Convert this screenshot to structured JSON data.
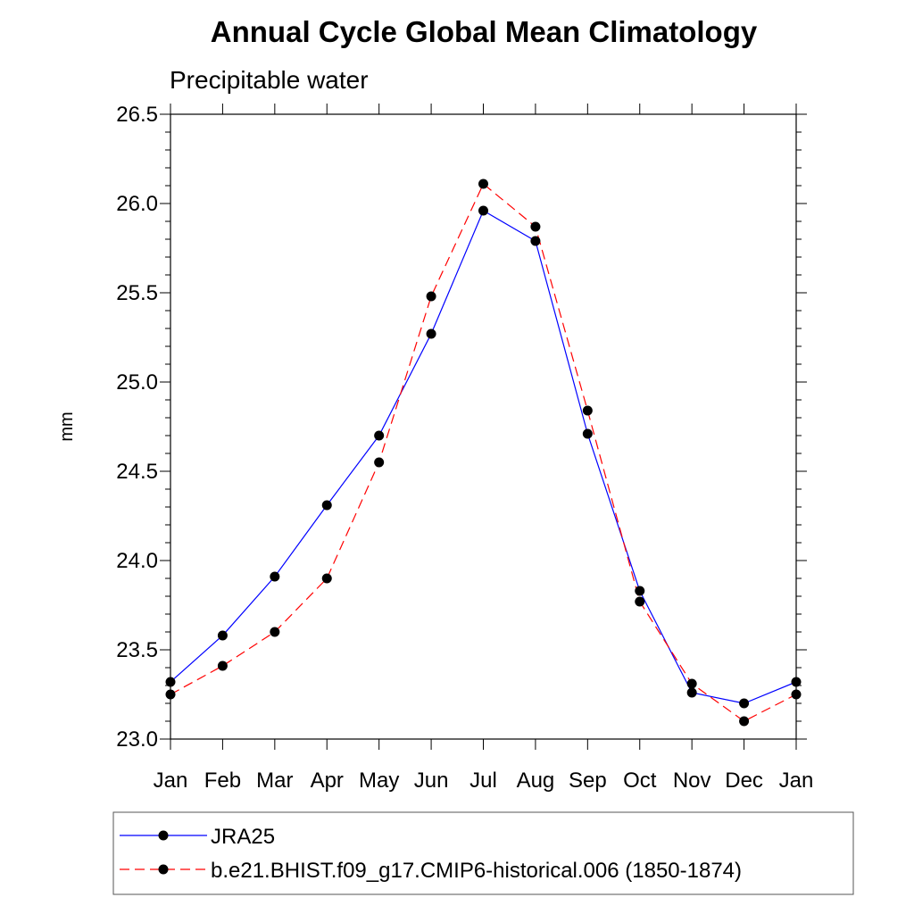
{
  "chart_data": {
    "type": "line",
    "title": "Annual Cycle Global Mean Climatology",
    "subtitle": "Precipitable water",
    "xlabel": "",
    "ylabel": "mm",
    "ylim": [
      23.0,
      26.5
    ],
    "y_ticks": [
      "23.0",
      "23.5",
      "24.0",
      "24.5",
      "25.0",
      "25.5",
      "26.0",
      "26.5"
    ],
    "categories": [
      "Jan",
      "Feb",
      "Mar",
      "Apr",
      "May",
      "Jun",
      "Jul",
      "Aug",
      "Sep",
      "Oct",
      "Nov",
      "Dec",
      "Jan"
    ],
    "grid": false,
    "legend_position": "bottom",
    "series": [
      {
        "name": "JRA25",
        "color": "#0000ff",
        "dash": "solid",
        "values": [
          23.32,
          23.58,
          23.91,
          24.31,
          24.7,
          25.27,
          25.96,
          25.79,
          24.71,
          23.83,
          23.26,
          23.2,
          23.32
        ]
      },
      {
        "name": "b.e21.BHIST.f09_g17.CMIP6-historical.006 (1850-1874)",
        "color": "#ff0000",
        "dash": "dashed",
        "values": [
          23.25,
          23.41,
          23.6,
          23.9,
          24.55,
          25.48,
          26.11,
          25.87,
          24.84,
          23.77,
          23.31,
          23.1,
          23.25
        ]
      }
    ]
  }
}
